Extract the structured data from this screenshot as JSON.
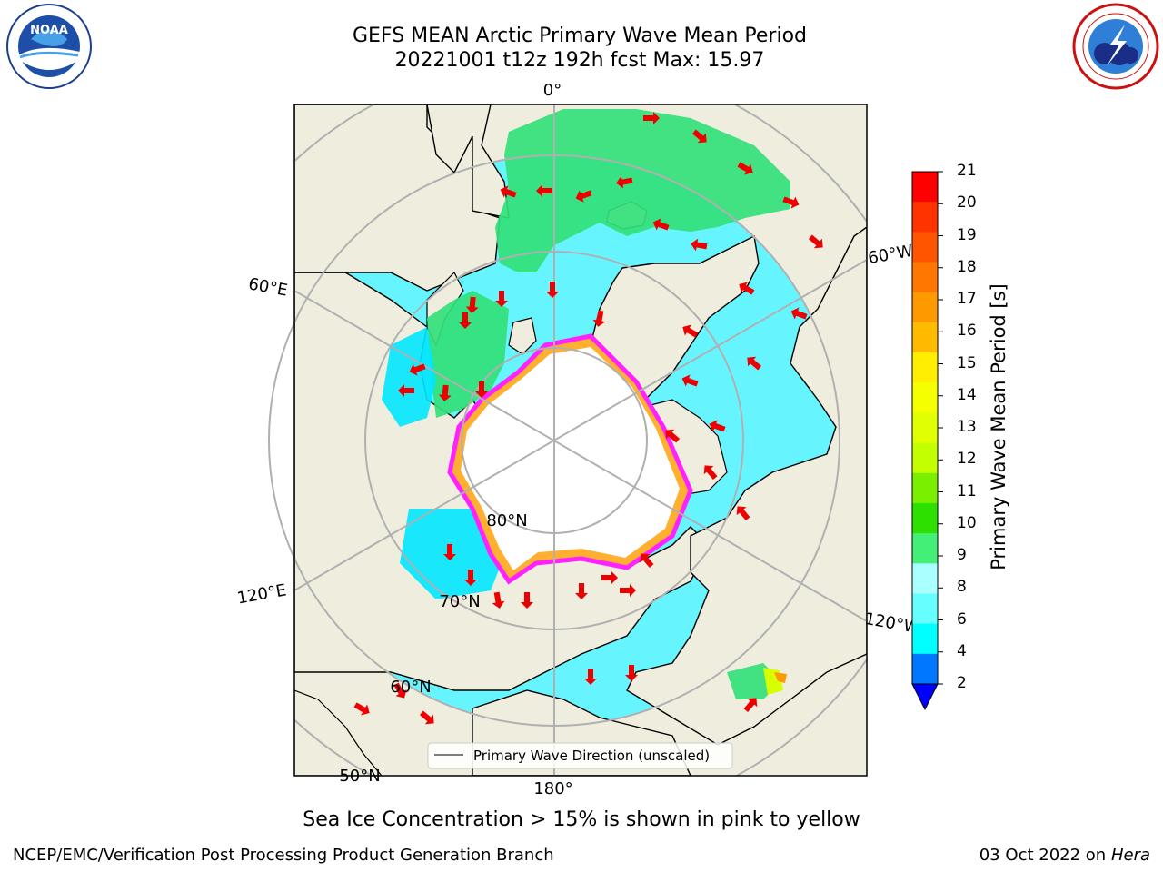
{
  "header": {
    "title_line1": "GEFS MEAN Arctic Primary Wave Mean Period",
    "title_line2": "20221001 t12z 192h fcst   Max: 15.97"
  },
  "logos": {
    "left": {
      "name": "NOAA",
      "ring_text": "NATIONAL OCEANIC AND ATMOSPHERIC ADMINISTRATION",
      "bottom_text": "U.S. DEPARTMENT OF COMMERCE"
    },
    "right": {
      "ring_text": "NATIONAL WEATHER SERVICE"
    }
  },
  "map": {
    "projection": "north polar stereographic",
    "lon_labels": {
      "top": "0°",
      "left_upper": "60°E",
      "left_lower": "120°E",
      "right_upper": "60°W",
      "right_lower": "120°W",
      "bottom": "180°"
    },
    "lat_labels": {
      "80": "80°N",
      "70": "70°N",
      "60": "60°N",
      "50": "50°N"
    },
    "legend_label": "Primary Wave Direction (unscaled)",
    "colors": {
      "land": "#efedde",
      "ocean_low": "#00e5ff",
      "ocean_mid": "#66f5ff",
      "ocean_swell": "#a8ffff",
      "green_lo": "#33e07a",
      "green_hi": "#22cc33",
      "ice_edge": "#ff22ff",
      "ice_inner": "#ffb030",
      "pole_hole": "#ffffff",
      "grid": "#b0b0b0",
      "arrows": "#ee0000",
      "coast": "#000000"
    }
  },
  "colorbar": {
    "label": "Primary Wave Mean Period [s]",
    "ticks": [
      "21",
      "20",
      "19",
      "18",
      "17",
      "16",
      "15",
      "14",
      "13",
      "12",
      "11",
      "10",
      "9",
      "8",
      "6",
      "4",
      "2"
    ],
    "bands": [
      "#ff0000",
      "#ff3300",
      "#ff5500",
      "#ff7700",
      "#ff9900",
      "#ffbb00",
      "#ffee00",
      "#f5ff00",
      "#e0ff00",
      "#c4ff00",
      "#7af000",
      "#2ee000",
      "#44ef77",
      "#aaffff",
      "#66ffff",
      "#00ffff",
      "#0077ff",
      "#0000ff"
    ],
    "extend_min_color": "#0000ff"
  },
  "caption": "Sea Ice Concentration > 15% is shown in pink to yellow",
  "footer": {
    "left": "NCEP/EMC/Verification Post Processing Product Generation Branch",
    "right_prefix": "03 Oct 2022 on ",
    "right_host": "Hera"
  }
}
